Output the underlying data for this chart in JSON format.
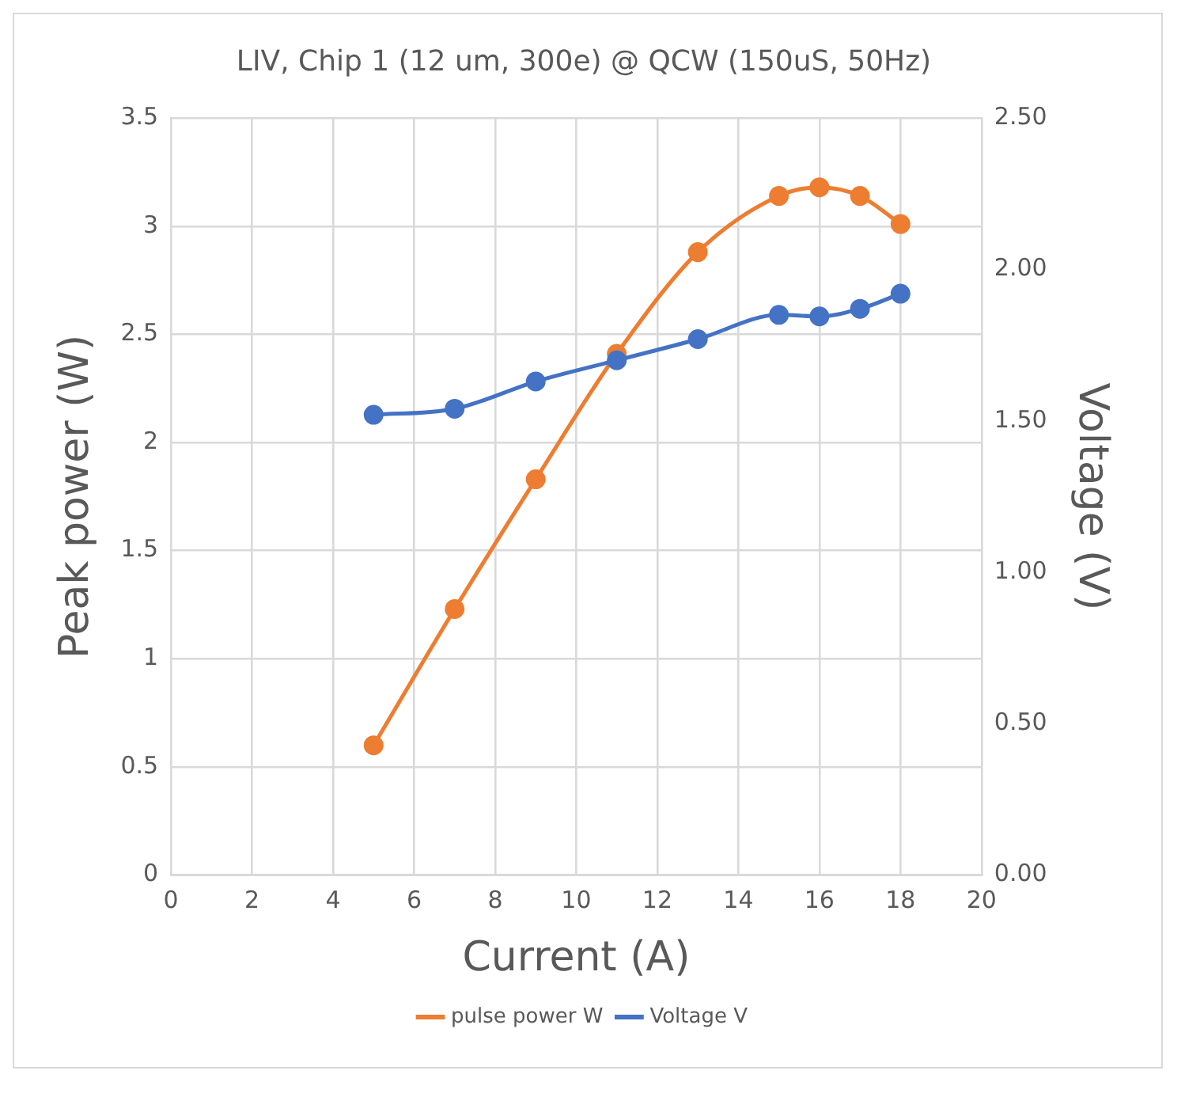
{
  "chart_data": {
    "type": "line",
    "title": "LIV, Chip 1 (12 um, 300e) @ QCW (150uS, 50Hz)",
    "xlabel": "Current (A)",
    "ylabel": "Peak power (W)",
    "y2label": "Voltage (V)",
    "x": [
      5,
      7,
      9,
      11,
      13,
      15,
      16,
      17,
      18
    ],
    "series": [
      {
        "name": "pulse power W",
        "color": "#ed7d31",
        "values": [
          0.6,
          1.23,
          1.83,
          2.41,
          2.88,
          3.14,
          3.18,
          3.14,
          3.01
        ]
      },
      {
        "name": "Voltage V",
        "color": "#4472c4",
        "axis": "y2",
        "values": [
          1.52,
          1.54,
          1.63,
          1.7,
          1.77,
          1.85,
          1.845,
          1.87,
          1.92
        ]
      }
    ],
    "xlim": [
      0,
      20
    ],
    "xticks": [
      0,
      2,
      4,
      6,
      8,
      10,
      12,
      14,
      16,
      18,
      20
    ],
    "ylim": [
      0,
      3.5
    ],
    "yticks": [
      0,
      0.5,
      1,
      1.5,
      2,
      2.5,
      3,
      3.5
    ],
    "y2lim": [
      0,
      2.5
    ],
    "y2ticks": [
      {
        "value": 0,
        "label": "0.00"
      },
      {
        "value": 0.5,
        "label": "0.50"
      },
      {
        "value": 1,
        "label": "1.00"
      },
      {
        "value": 1.5,
        "label": "1.50"
      },
      {
        "value": 2,
        "label": "2.00"
      },
      {
        "value": 2.5,
        "label": "2.50"
      }
    ],
    "grid": true,
    "legend": "bottom",
    "marker": "circle",
    "line_style": "solid"
  }
}
